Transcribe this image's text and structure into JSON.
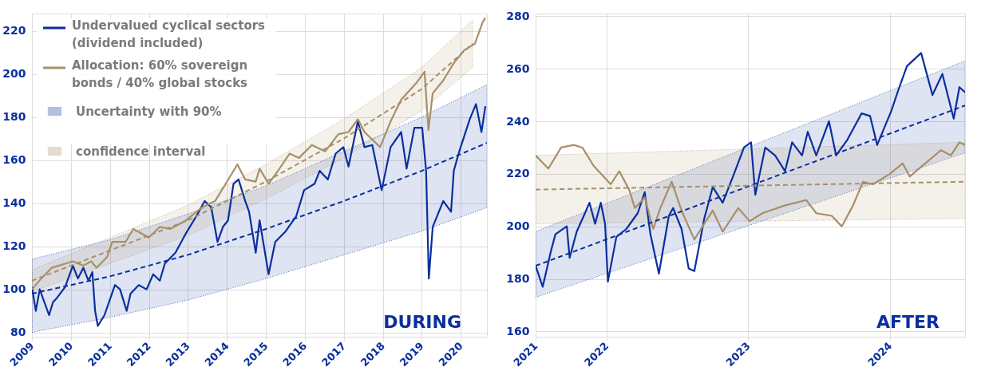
{
  "chart_data": [
    {
      "type": "line",
      "xlim": [
        2009,
        2020.67
      ],
      "ylim": [
        78,
        228
      ],
      "xticks": [
        2009,
        2010,
        2011,
        2012,
        2013,
        2014,
        2015,
        2016,
        2017,
        2018,
        2019,
        2020
      ],
      "yticks": [
        80,
        100,
        120,
        140,
        160,
        180,
        200,
        220
      ],
      "grid": true,
      "legend": "top left",
      "annotations": [
        "Uncertainty with 90% confidence interval",
        "DURING"
      ],
      "series": [
        {
          "name": "Undervalued cyclical sectors (dividend included)",
          "color": "#0a2f9e",
          "x": [
            2009.0,
            2009.1,
            2009.2,
            2009.44,
            2009.54,
            2009.64,
            2009.85,
            2010.05,
            2010.18,
            2010.32,
            2010.45,
            2010.55,
            2010.62,
            2010.69,
            2010.86,
            2011.13,
            2011.26,
            2011.43,
            2011.53,
            2011.74,
            2011.94,
            2012.11,
            2012.28,
            2012.41,
            2012.68,
            2012.95,
            2013.22,
            2013.43,
            2013.6,
            2013.76,
            2013.9,
            2014.03,
            2014.17,
            2014.3,
            2014.47,
            2014.57,
            2014.74,
            2014.84,
            2015.07,
            2015.24,
            2015.51,
            2015.78,
            2015.98,
            2016.25,
            2016.38,
            2016.59,
            2016.79,
            2016.99,
            2017.12,
            2017.36,
            2017.53,
            2017.73,
            2017.97,
            2018.2,
            2018.47,
            2018.61,
            2018.81,
            2019.01,
            2019.11,
            2019.18,
            2019.28,
            2019.55,
            2019.75,
            2019.82,
            2019.96,
            2020.23,
            2020.39,
            2020.53,
            2020.63
          ],
          "values": [
            101,
            90,
            100,
            88,
            94,
            96,
            101,
            111,
            105,
            110,
            104,
            108,
            90,
            83,
            88,
            102,
            100,
            90,
            98,
            102,
            100,
            107,
            104,
            112,
            117,
            126,
            134,
            141,
            138,
            122,
            129,
            132,
            149,
            151,
            141,
            136,
            117,
            132,
            107,
            122,
            127,
            134,
            146,
            149,
            155,
            151,
            163,
            166,
            157,
            178,
            166,
            167,
            146,
            166,
            173,
            156,
            175,
            175,
            155,
            105,
            129,
            141,
            136,
            155,
            164,
            179,
            186,
            173,
            185
          ]
        },
        {
          "name": "Allocation: 60% sovereign bonds / 40% global stocks",
          "color": "#a88f68",
          "x": [
            2009.0,
            2009.24,
            2009.51,
            2010.05,
            2010.32,
            2010.52,
            2010.66,
            2010.93,
            2011.06,
            2011.4,
            2011.6,
            2012.0,
            2012.28,
            2012.55,
            2012.95,
            2013.36,
            2013.7,
            2013.97,
            2014.27,
            2014.47,
            2014.74,
            2014.84,
            2015.07,
            2015.31,
            2015.61,
            2015.85,
            2016.18,
            2016.52,
            2016.86,
            2017.12,
            2017.36,
            2017.53,
            2017.93,
            2018.2,
            2018.47,
            2018.87,
            2019.07,
            2019.17,
            2019.28,
            2019.55,
            2019.82,
            2020.09,
            2020.36,
            2020.56,
            2020.63
          ],
          "values": [
            100,
            105,
            110,
            113,
            111,
            113,
            110,
            115,
            122,
            122,
            128,
            124,
            129,
            128,
            132,
            138,
            141,
            149,
            158,
            151,
            150,
            156,
            149,
            155,
            163,
            161,
            167,
            164,
            172,
            173,
            179,
            173,
            166,
            178,
            188,
            196,
            201,
            174,
            191,
            197,
            205,
            211,
            214,
            224,
            226
          ]
        },
        {
          "color": "#0a2f9e",
          "line_style": "dashed",
          "x": [
            2009,
            2011,
            2013,
            2015,
            2017,
            2019,
            2020.67
          ],
          "values": [
            98,
            106,
            116,
            128,
            141,
            155,
            168
          ],
          "lower": [
            80,
            87,
            95,
            105,
            116,
            127,
            138
          ],
          "upper": [
            114,
            123,
            135,
            148,
            164,
            180,
            195
          ]
        },
        {
          "color": "#a88f68",
          "line_style": "dashed",
          "x": [
            2009,
            2011,
            2013,
            2015,
            2017,
            2019,
            2020.3
          ],
          "values": [
            104,
            118,
            132,
            150,
            170,
            193,
            214
          ],
          "lower": [
            99,
            112,
            125,
            142,
            161,
            183,
            203
          ],
          "upper": [
            109,
            124,
            139,
            158,
            179,
            203,
            225
          ]
        }
      ]
    },
    {
      "type": "line",
      "xlim": [
        2021.5,
        2024.53
      ],
      "ylim": [
        158,
        281
      ],
      "xticks": [
        {
          "value": 2021.5,
          "label": "2021"
        },
        2022,
        2023,
        2024
      ],
      "yticks": [
        160,
        180,
        200,
        220,
        240,
        260,
        280
      ],
      "grid": true,
      "annotations": [
        "AFTER"
      ],
      "series": [
        {
          "color": "#0a2f9e",
          "x": [
            2021.5,
            2021.55,
            2021.61,
            2021.64,
            2021.72,
            2021.74,
            2021.79,
            2021.84,
            2021.88,
            2021.92,
            2021.96,
            2021.99,
            2022.01,
            2022.07,
            2022.14,
            2022.22,
            2022.27,
            2022.31,
            2022.37,
            2022.44,
            2022.47,
            2022.53,
            2022.58,
            2022.62,
            2022.69,
            2022.75,
            2022.82,
            2022.9,
            2022.97,
            2023.02,
            2023.05,
            2023.12,
            2023.19,
            2023.26,
            2023.31,
            2023.38,
            2023.42,
            2023.48,
            2023.57,
            2023.62,
            2023.7,
            2023.8,
            2023.86,
            2023.91,
            2024.01,
            2024.06,
            2024.12,
            2024.22,
            2024.3,
            2024.37,
            2024.45,
            2024.49,
            2024.53
          ],
          "values": [
            185,
            177,
            191,
            197,
            200,
            188,
            198,
            204,
            209,
            201,
            209,
            201,
            179,
            196,
            199,
            205,
            213,
            197,
            182,
            204,
            207,
            199,
            184,
            183,
            203,
            215,
            209,
            220,
            230,
            232,
            212,
            230,
            227,
            221,
            232,
            227,
            236,
            227,
            240,
            227,
            233,
            243,
            242,
            231,
            244,
            252,
            261,
            266,
            250,
            258,
            241,
            253,
            251
          ]
        },
        {
          "color": "#a88f68",
          "x": [
            2021.5,
            2021.59,
            2021.68,
            2021.77,
            2021.83,
            2021.91,
            2021.98,
            2022.03,
            2022.09,
            2022.16,
            2022.2,
            2022.27,
            2022.33,
            2022.38,
            2022.46,
            2022.53,
            2022.62,
            2022.69,
            2022.75,
            2022.82,
            2022.93,
            2023.01,
            2023.1,
            2023.26,
            2023.41,
            2023.48,
            2023.59,
            2023.66,
            2023.74,
            2023.81,
            2023.88,
            2024.0,
            2024.09,
            2024.14,
            2024.25,
            2024.36,
            2024.43,
            2024.49,
            2024.53
          ],
          "values": [
            227,
            222,
            230,
            231,
            230,
            223,
            219,
            216,
            221,
            214,
            207,
            211,
            199,
            207,
            217,
            206,
            195,
            201,
            206,
            198,
            207,
            202,
            205,
            208,
            210,
            205,
            204,
            200,
            208,
            217,
            216,
            220,
            224,
            219,
            224,
            229,
            227,
            232,
            231
          ]
        },
        {
          "color": "#0a2f9e",
          "line_style": "dashed",
          "x": [
            2021.5,
            2024.53
          ],
          "values": [
            185,
            246
          ],
          "lower": [
            173,
            228
          ],
          "upper": [
            198,
            263
          ]
        },
        {
          "color": "#a88f68",
          "line_style": "dashed",
          "x": [
            2021.5,
            2024.53
          ],
          "values": [
            214,
            217
          ],
          "lower": [
            201,
            203
          ],
          "upper": [
            227,
            232
          ]
        }
      ]
    }
  ]
}
